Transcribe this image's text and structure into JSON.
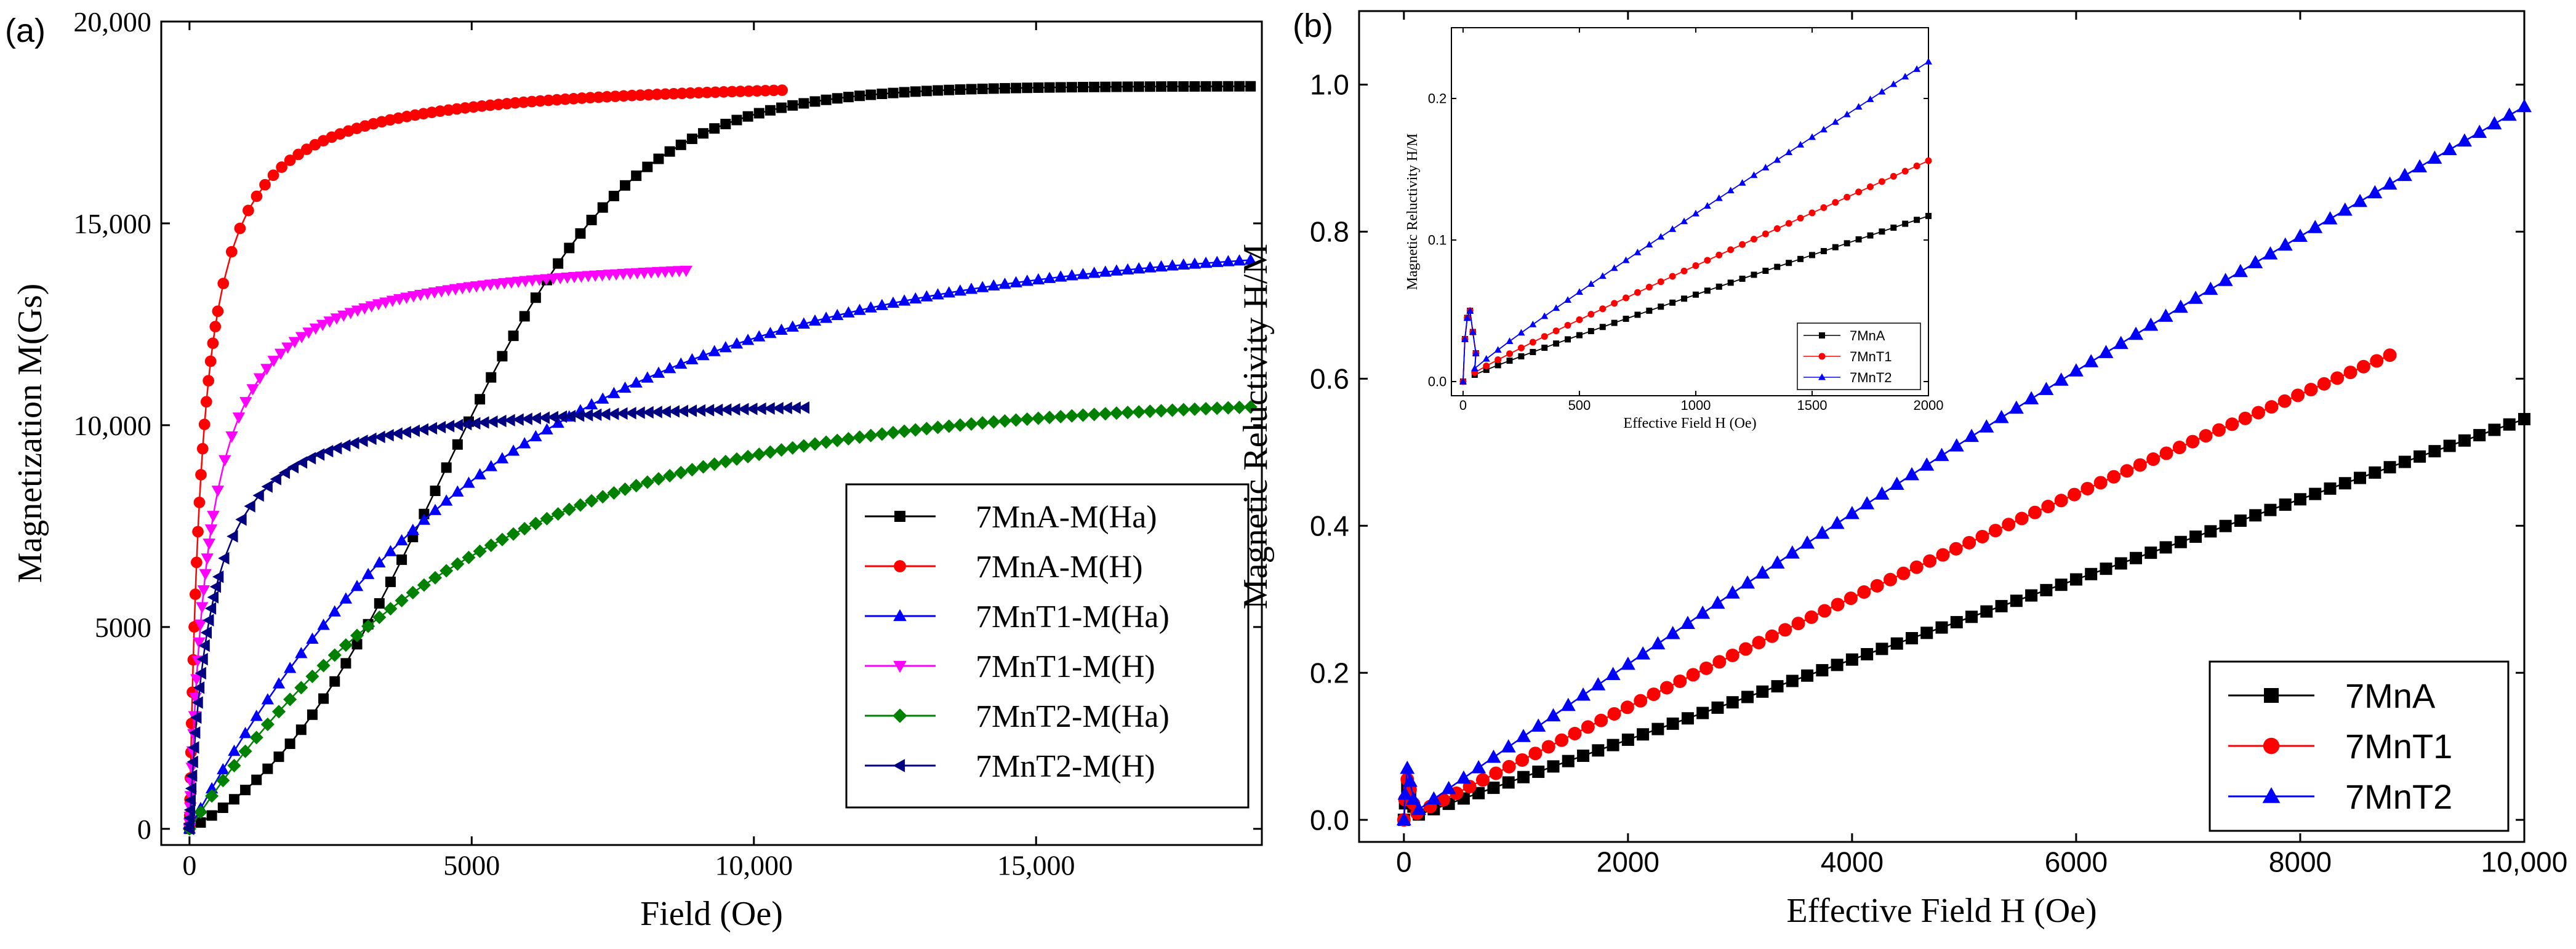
{
  "chart_data": [
    {
      "panel_label": "(a)",
      "type": "scatter",
      "xlabel": "Field (Oe)",
      "ylabel": "Magnetization M(Gs)",
      "xlim": [
        -500,
        19000
      ],
      "ylim": [
        -400,
        20000
      ],
      "xticks": [
        0,
        5000,
        10000,
        15000
      ],
      "xtick_labels": [
        "0",
        "5000",
        "10,000",
        "15,000"
      ],
      "yticks": [
        0,
        5000,
        10000,
        15000,
        20000
      ],
      "ytick_labels": [
        "0",
        "5000",
        "10,000",
        "15,000",
        "20,000"
      ],
      "legend_position": "center-right",
      "series": [
        {
          "name": "7MnA-M(Ha)",
          "color": "#000000",
          "marker": "square",
          "x_max": 18800,
          "model": "sigmoid",
          "m_sat": 18400,
          "h0": 4400,
          "k": 1700
        },
        {
          "name": "7MnA-M(H)",
          "color": "#ff0000",
          "marker": "circle",
          "x_max": 10500,
          "model": "langevin",
          "m_sat": 18700,
          "h0": 230
        },
        {
          "name": "7MnT1-M(Ha)",
          "color": "#0000ff",
          "marker": "triangle-up",
          "x_max": 18800,
          "model": "expo",
          "m_sat": 14600,
          "h0": 5600
        },
        {
          "name": "7MnT1-M(H)",
          "color": "#ff00ff",
          "marker": "triangle-down",
          "x_max": 8800,
          "model": "langevin",
          "m_sat": 14400,
          "h0": 360
        },
        {
          "name": "7MnT2-M(Ha)",
          "color": "#008000",
          "marker": "diamond",
          "x_max": 18800,
          "model": "expo",
          "m_sat": 10700,
          "h0": 5000
        },
        {
          "name": "7MnT2-M(H)",
          "color": "#000080",
          "marker": "triangle-left",
          "x_max": 10900,
          "model": "langevin",
          "m_sat": 10800,
          "h0": 380
        }
      ]
    },
    {
      "panel_label": "(b)",
      "type": "scatter",
      "xlabel": "Effective Field H (Oe)",
      "ylabel": "Magnetic  Reluctivity H/M",
      "xlim": [
        -400,
        10000
      ],
      "ylim": [
        -0.03,
        1.1
      ],
      "xticks": [
        0,
        2000,
        4000,
        6000,
        8000,
        10000
      ],
      "xtick_labels": [
        "0",
        "2000",
        "4000",
        "6000",
        "8000",
        "10,000"
      ],
      "yticks": [
        0.0,
        0.2,
        0.4,
        0.6,
        0.8,
        1.0
      ],
      "ytick_labels": [
        "0.0",
        "0.2",
        "0.4",
        "0.6",
        "0.8",
        "1.0"
      ],
      "legend_position": "bottom-right",
      "series": [
        {
          "name": "7MnA",
          "color": "#000000",
          "marker": "square",
          "x_max": 10000,
          "slope": 5.45e-05,
          "curv": 0.0,
          "peak": 0.045,
          "end_label": 0.545
        },
        {
          "name": "7MnT1",
          "color": "#ff0000",
          "marker": "circle",
          "x_max": 8800,
          "slope": 6.6e-05,
          "curv": 0.015,
          "peak": 0.055,
          "end_label": 0.632
        },
        {
          "name": "7MnT2",
          "color": "#0000ff",
          "marker": "triangle-up",
          "x_max": 10000,
          "slope": 9.35e-05,
          "curv": 0.03,
          "peak": 0.07,
          "end_label": 0.97
        }
      ],
      "inset": {
        "xlabel": "Effective Field H (Oe)",
        "ylabel": "Magnetic  Reluctivity H/M",
        "xlim": [
          -50,
          2000
        ],
        "ylim": [
          -0.01,
          0.25
        ],
        "xticks": [
          0,
          500,
          1000,
          1500,
          2000
        ],
        "xtick_labels": [
          "0",
          "500",
          "1000",
          "1500",
          "2000"
        ],
        "yticks": [
          0.0,
          0.1,
          0.2
        ],
        "ytick_labels": [
          "0.0",
          "0.1",
          "0.2"
        ],
        "legend_position": "bottom-right",
        "series": [
          {
            "name": "7MnA",
            "color": "#000000",
            "marker": "square",
            "end_value": 0.117
          },
          {
            "name": "7MnT1",
            "color": "#ff0000",
            "marker": "circle",
            "end_value": 0.156
          },
          {
            "name": "7MnT2",
            "color": "#0000ff",
            "marker": "triangle-up",
            "end_value": 0.226
          }
        ]
      }
    }
  ]
}
